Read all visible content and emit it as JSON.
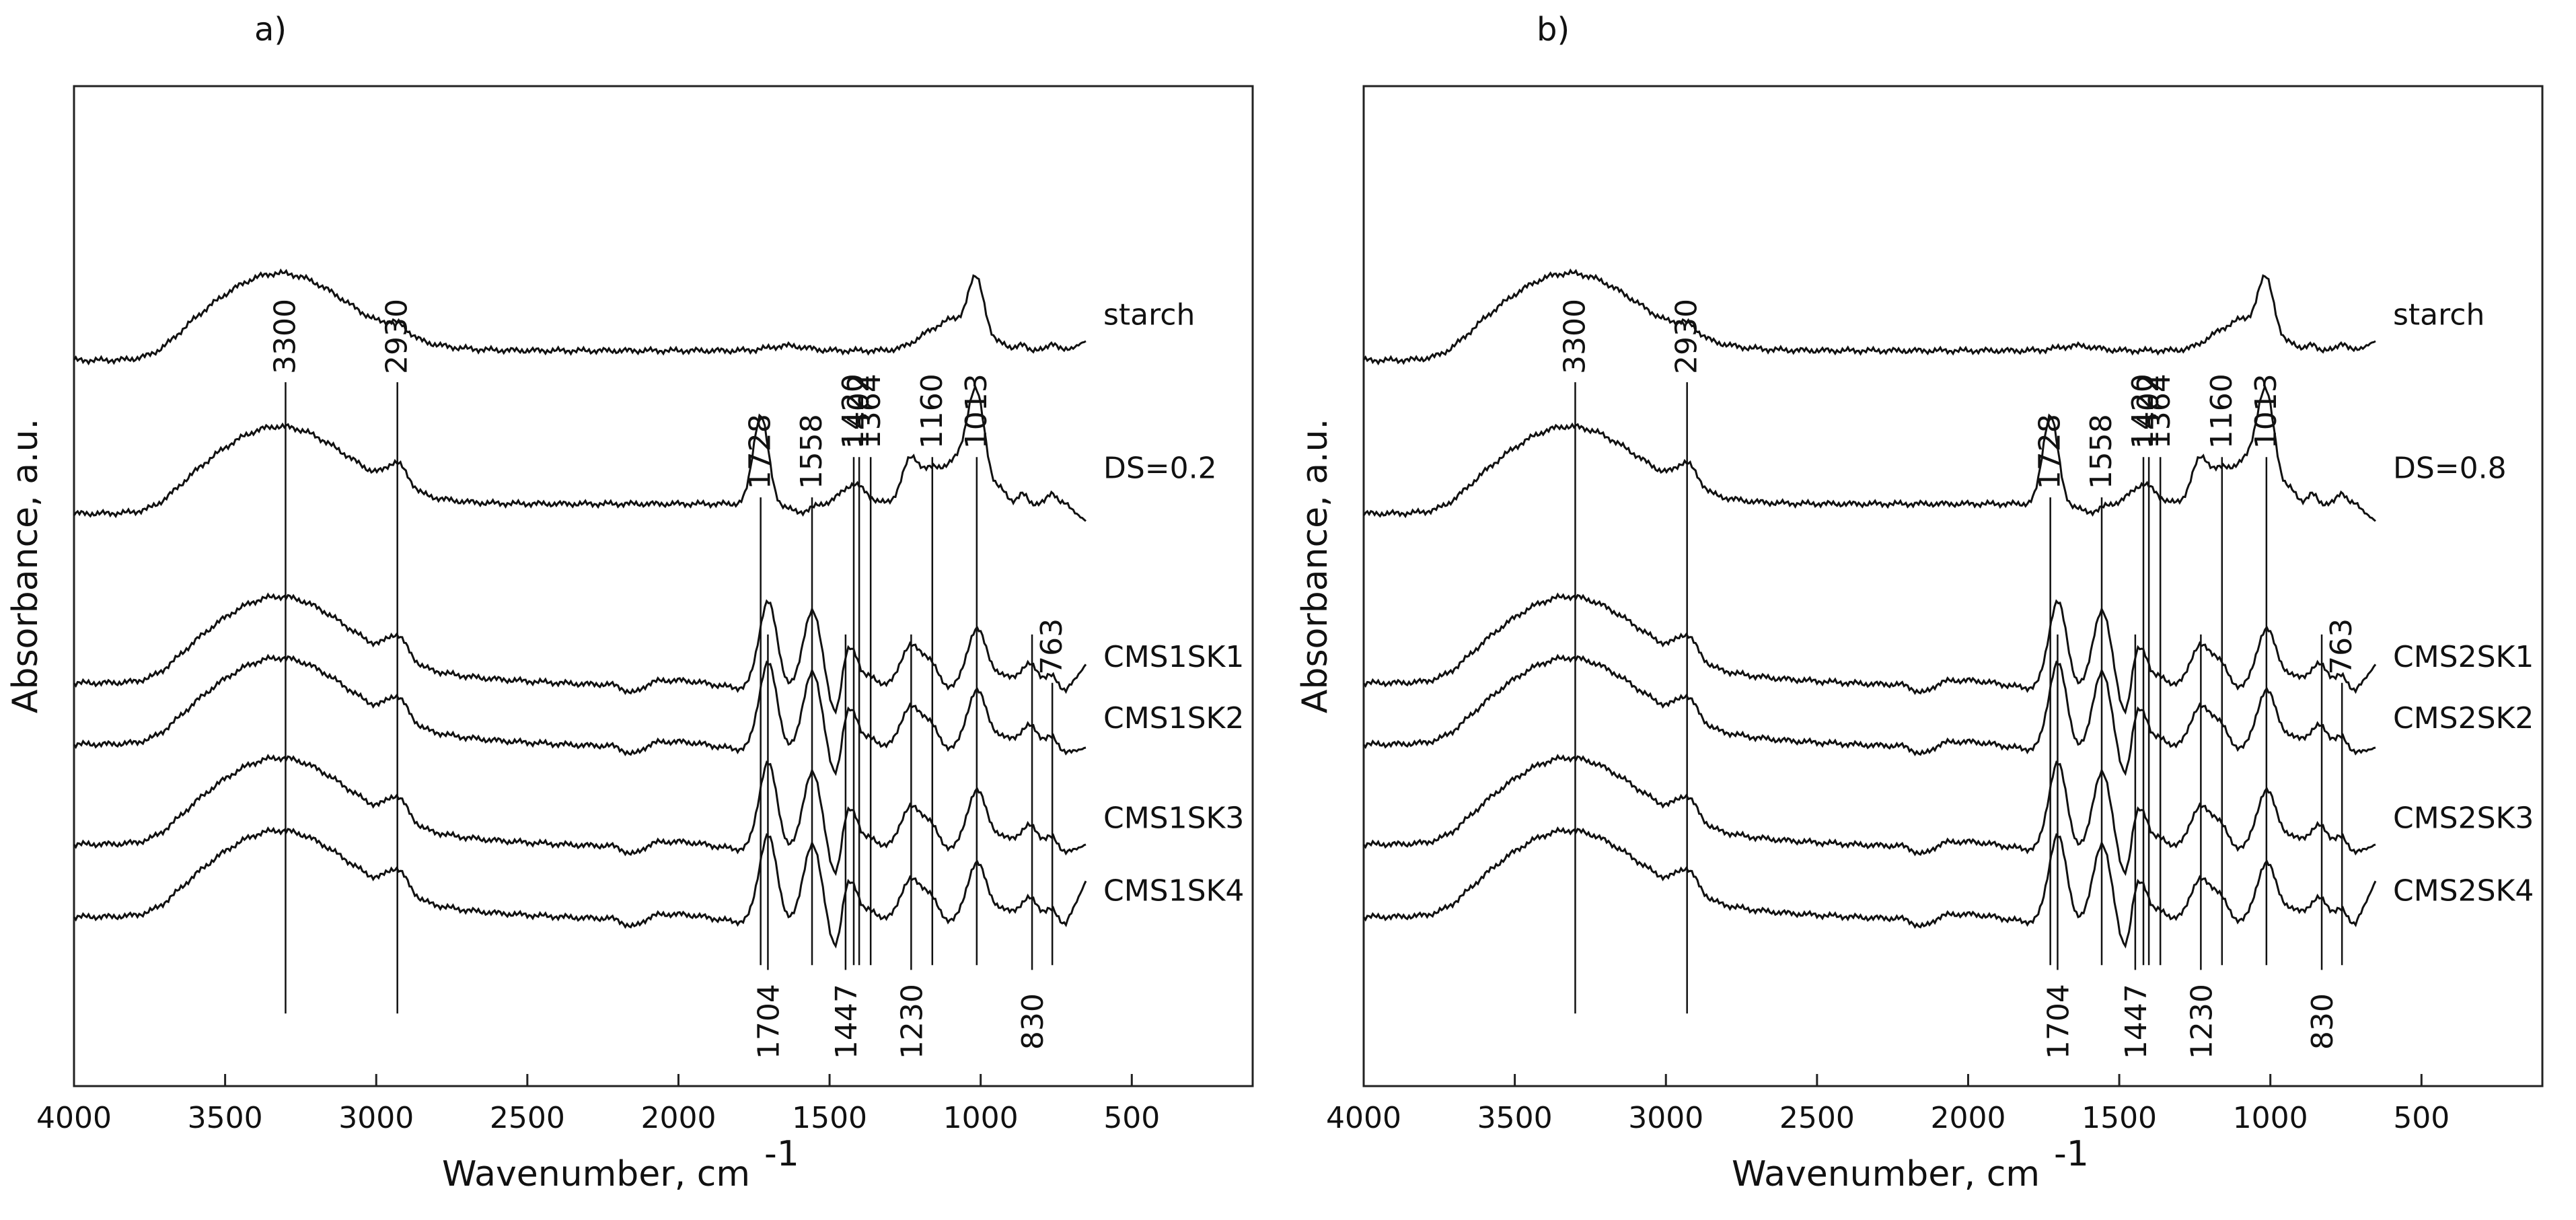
{
  "chart_data": [
    {
      "type": "line",
      "panel_label": "a)",
      "xlabel": "Wavenumber, cm",
      "xlabel_superscript": "-1",
      "ylabel": "Absorbance, a.u.",
      "xlim": [
        4000,
        100
      ],
      "ylim": [
        0,
        6.2
      ],
      "x_ticks": [
        4000,
        3500,
        3000,
        2500,
        2000,
        1500,
        1000,
        500
      ],
      "x_tick_labels": [
        "4000",
        "3500",
        "3000",
        "2500",
        "2000",
        "1500",
        "1000",
        "500"
      ],
      "series": [
        {
          "name": "starch",
          "offset": 4.5,
          "y_end": 4.62
        },
        {
          "name": "DS=0.2",
          "offset": 3.55,
          "y_end": 3.5
        },
        {
          "name": "CMS1SK1",
          "offset": 2.38,
          "y_end": 2.62
        },
        {
          "name": "CMS1SK2",
          "offset": 2.0,
          "y_end": 2.1
        },
        {
          "name": "CMS1SK3",
          "offset": 1.38,
          "y_end": 1.5
        },
        {
          "name": "CMS1SK4",
          "offset": 0.93,
          "y_end": 1.28
        }
      ],
      "top_peaks": [
        {
          "value": 3300,
          "label": "3300"
        },
        {
          "value": 2930,
          "label": "2930"
        },
        {
          "value": 1728,
          "label": "1728"
        },
        {
          "value": 1558,
          "label": "1558"
        },
        {
          "value": 1420,
          "label": "1420"
        },
        {
          "value": 1402,
          "label": "1402"
        },
        {
          "value": 1364,
          "label": "1364"
        },
        {
          "value": 1160,
          "label": "1160"
        },
        {
          "value": 1013,
          "label": "1013"
        },
        {
          "value": 763,
          "label": "763"
        }
      ],
      "bottom_peaks": [
        {
          "value": 1704,
          "label": "1704"
        },
        {
          "value": 1447,
          "label": "1447"
        },
        {
          "value": 1230,
          "label": "1230"
        },
        {
          "value": 830,
          "label": "830"
        }
      ]
    },
    {
      "type": "line",
      "panel_label": "b)",
      "xlabel": "Wavenumber, cm",
      "xlabel_superscript": "-1",
      "ylabel": "Absorbance, a.u.",
      "xlim": [
        4000,
        100
      ],
      "ylim": [
        0,
        6.2
      ],
      "x_ticks": [
        4000,
        3500,
        3000,
        2500,
        2000,
        1500,
        1000,
        500
      ],
      "x_tick_labels": [
        "4000",
        "3500",
        "3000",
        "2500",
        "2000",
        "1500",
        "1000",
        "500"
      ],
      "series": [
        {
          "name": "starch",
          "offset": 4.5,
          "y_end": 4.62
        },
        {
          "name": "DS=0.8",
          "offset": 3.55,
          "y_end": 3.5
        },
        {
          "name": "CMS2SK1",
          "offset": 2.38,
          "y_end": 2.62
        },
        {
          "name": "CMS2SK2",
          "offset": 2.0,
          "y_end": 2.1
        },
        {
          "name": "CMS2SK3",
          "offset": 1.38,
          "y_end": 1.5
        },
        {
          "name": "CMS2SK4",
          "offset": 0.93,
          "y_end": 1.28
        }
      ],
      "top_peaks": [
        {
          "value": 3300,
          "label": "3300"
        },
        {
          "value": 2930,
          "label": "2930"
        },
        {
          "value": 1728,
          "label": "1728"
        },
        {
          "value": 1558,
          "label": "1558"
        },
        {
          "value": 1420,
          "label": "1420"
        },
        {
          "value": 1402,
          "label": "1402"
        },
        {
          "value": 1364,
          "label": "1364"
        },
        {
          "value": 1160,
          "label": "1160"
        },
        {
          "value": 1013,
          "label": "1013"
        },
        {
          "value": 763,
          "label": "763"
        }
      ],
      "bottom_peaks": [
        {
          "value": 1704,
          "label": "1704"
        },
        {
          "value": 1447,
          "label": "1447"
        },
        {
          "value": 1230,
          "label": "1230"
        },
        {
          "value": 830,
          "label": "830"
        }
      ]
    }
  ]
}
